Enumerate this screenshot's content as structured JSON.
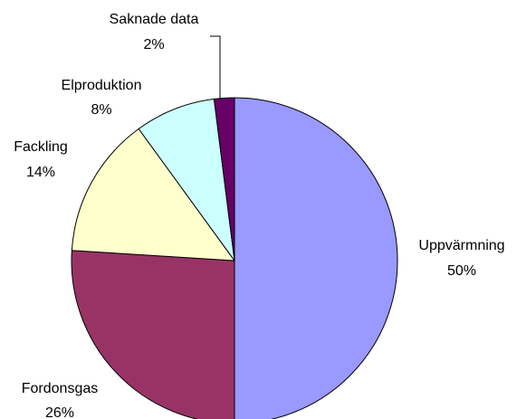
{
  "chart_data": {
    "type": "pie",
    "categories": [
      "Uppvärmning",
      "Fordonsgas",
      "Fackling",
      "Elproduktion",
      "Saknade data"
    ],
    "values": [
      50,
      26,
      14,
      8,
      2
    ],
    "value_labels": [
      "50%",
      "26%",
      "14%",
      "8%",
      "2%"
    ],
    "colors": [
      "#9999ff",
      "#993366",
      "#ffffcc",
      "#ccffff",
      "#660066"
    ]
  }
}
